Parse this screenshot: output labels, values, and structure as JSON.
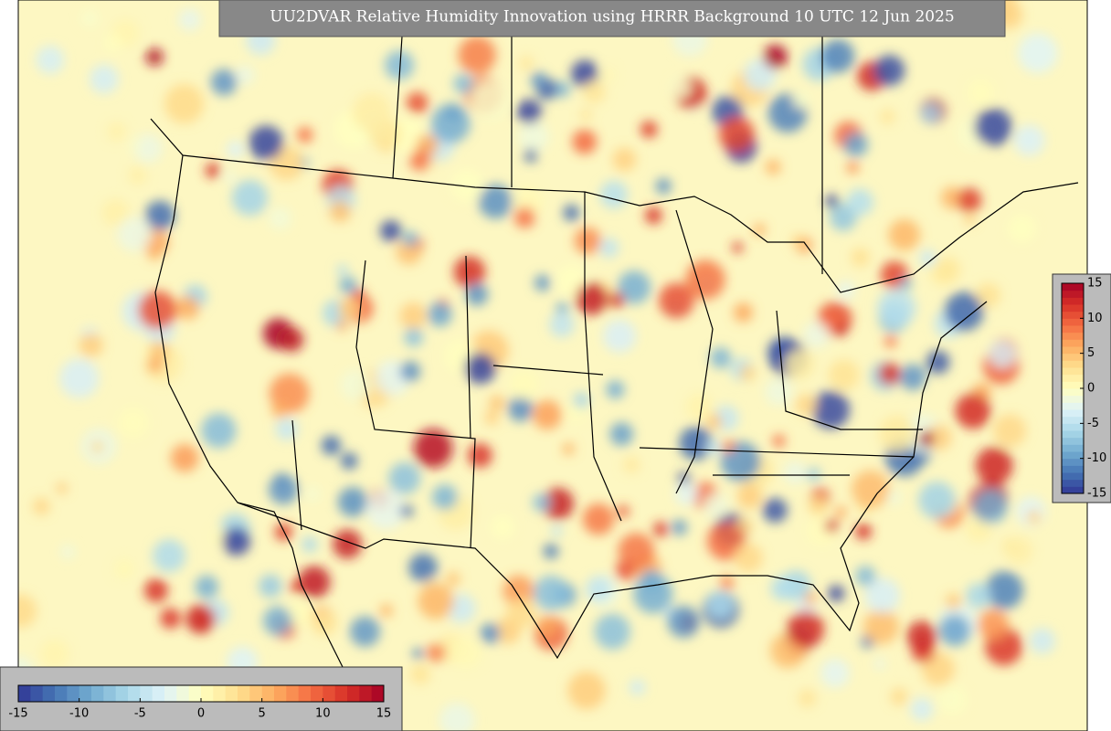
{
  "title": "UU2DVAR Relative Humidity Innovation using HRRR Background 10 UTC 12 Jun 2025",
  "colorbar": {
    "lim": [
      -15,
      15
    ],
    "ticks": [
      -15,
      -10,
      -5,
      0,
      5,
      10,
      15
    ],
    "colormap": [
      "#313695",
      "#4575b4",
      "#74add1",
      "#abd9e9",
      "#e0f3f8",
      "#ffffbf",
      "#fee090",
      "#fdae61",
      "#f46d43",
      "#d73027",
      "#a50026"
    ]
  }
}
